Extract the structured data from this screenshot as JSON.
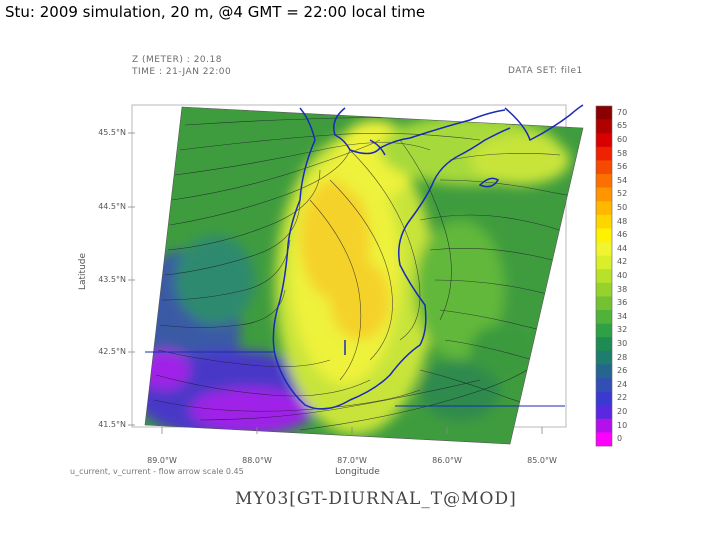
{
  "slide_title": "Stu: 2009 simulation, 20 m, @4 GMT = 22:00 local time",
  "plot": {
    "header_line1": "Z (METER) : 20.18",
    "header_line2": "TIME : 21-JAN 22:00",
    "dataset": "DATA SET: file1",
    "y_axis_label": "Latitude",
    "x_axis_label": "Longitude",
    "y_ticks": [
      "45.5°N",
      "44.5°N",
      "43.5°N",
      "42.5°N",
      "41.5°N"
    ],
    "x_ticks": [
      "89.0°W",
      "88.0°W",
      "87.0°W",
      "86.0°W",
      "85.0°W"
    ],
    "vector_note": "u_current, v_current - flow arrow scale 0.45",
    "bottom_title": "MY03[GT-DIURNAL_T@MOD]"
  },
  "colorbar": {
    "labels": [
      "70",
      "65",
      "60",
      "58",
      "56",
      "54",
      "52",
      "50",
      "48",
      "46",
      "44",
      "42",
      "40",
      "38",
      "36",
      "34",
      "32",
      "30",
      "28",
      "26",
      "24",
      "22",
      "20",
      "10",
      "0"
    ],
    "colors": [
      "#8b0000",
      "#b00000",
      "#d80000",
      "#ee2200",
      "#f54a00",
      "#fb7000",
      "#ff9500",
      "#ffb700",
      "#ffd500",
      "#fff200",
      "#f0f530",
      "#d8ef2a",
      "#b8e22a",
      "#96d22c",
      "#74c232",
      "#50b23a",
      "#30a046",
      "#1e8c52",
      "#1d7d6e",
      "#25668f",
      "#3250b4",
      "#3a3ad0",
      "#5a28e0",
      "#b410ec",
      "#ff00ff"
    ]
  },
  "map_colors": {
    "green": "#4aa83c",
    "lightgreen": "#82c83a",
    "yellowgreen": "#c8e43a",
    "yellow": "#eef23a",
    "gold": "#f5d22a",
    "blue": "#3a62a8",
    "purple": "#8a2ee0",
    "magenta": "#c020f0",
    "coastline": "#1a2ab8"
  }
}
